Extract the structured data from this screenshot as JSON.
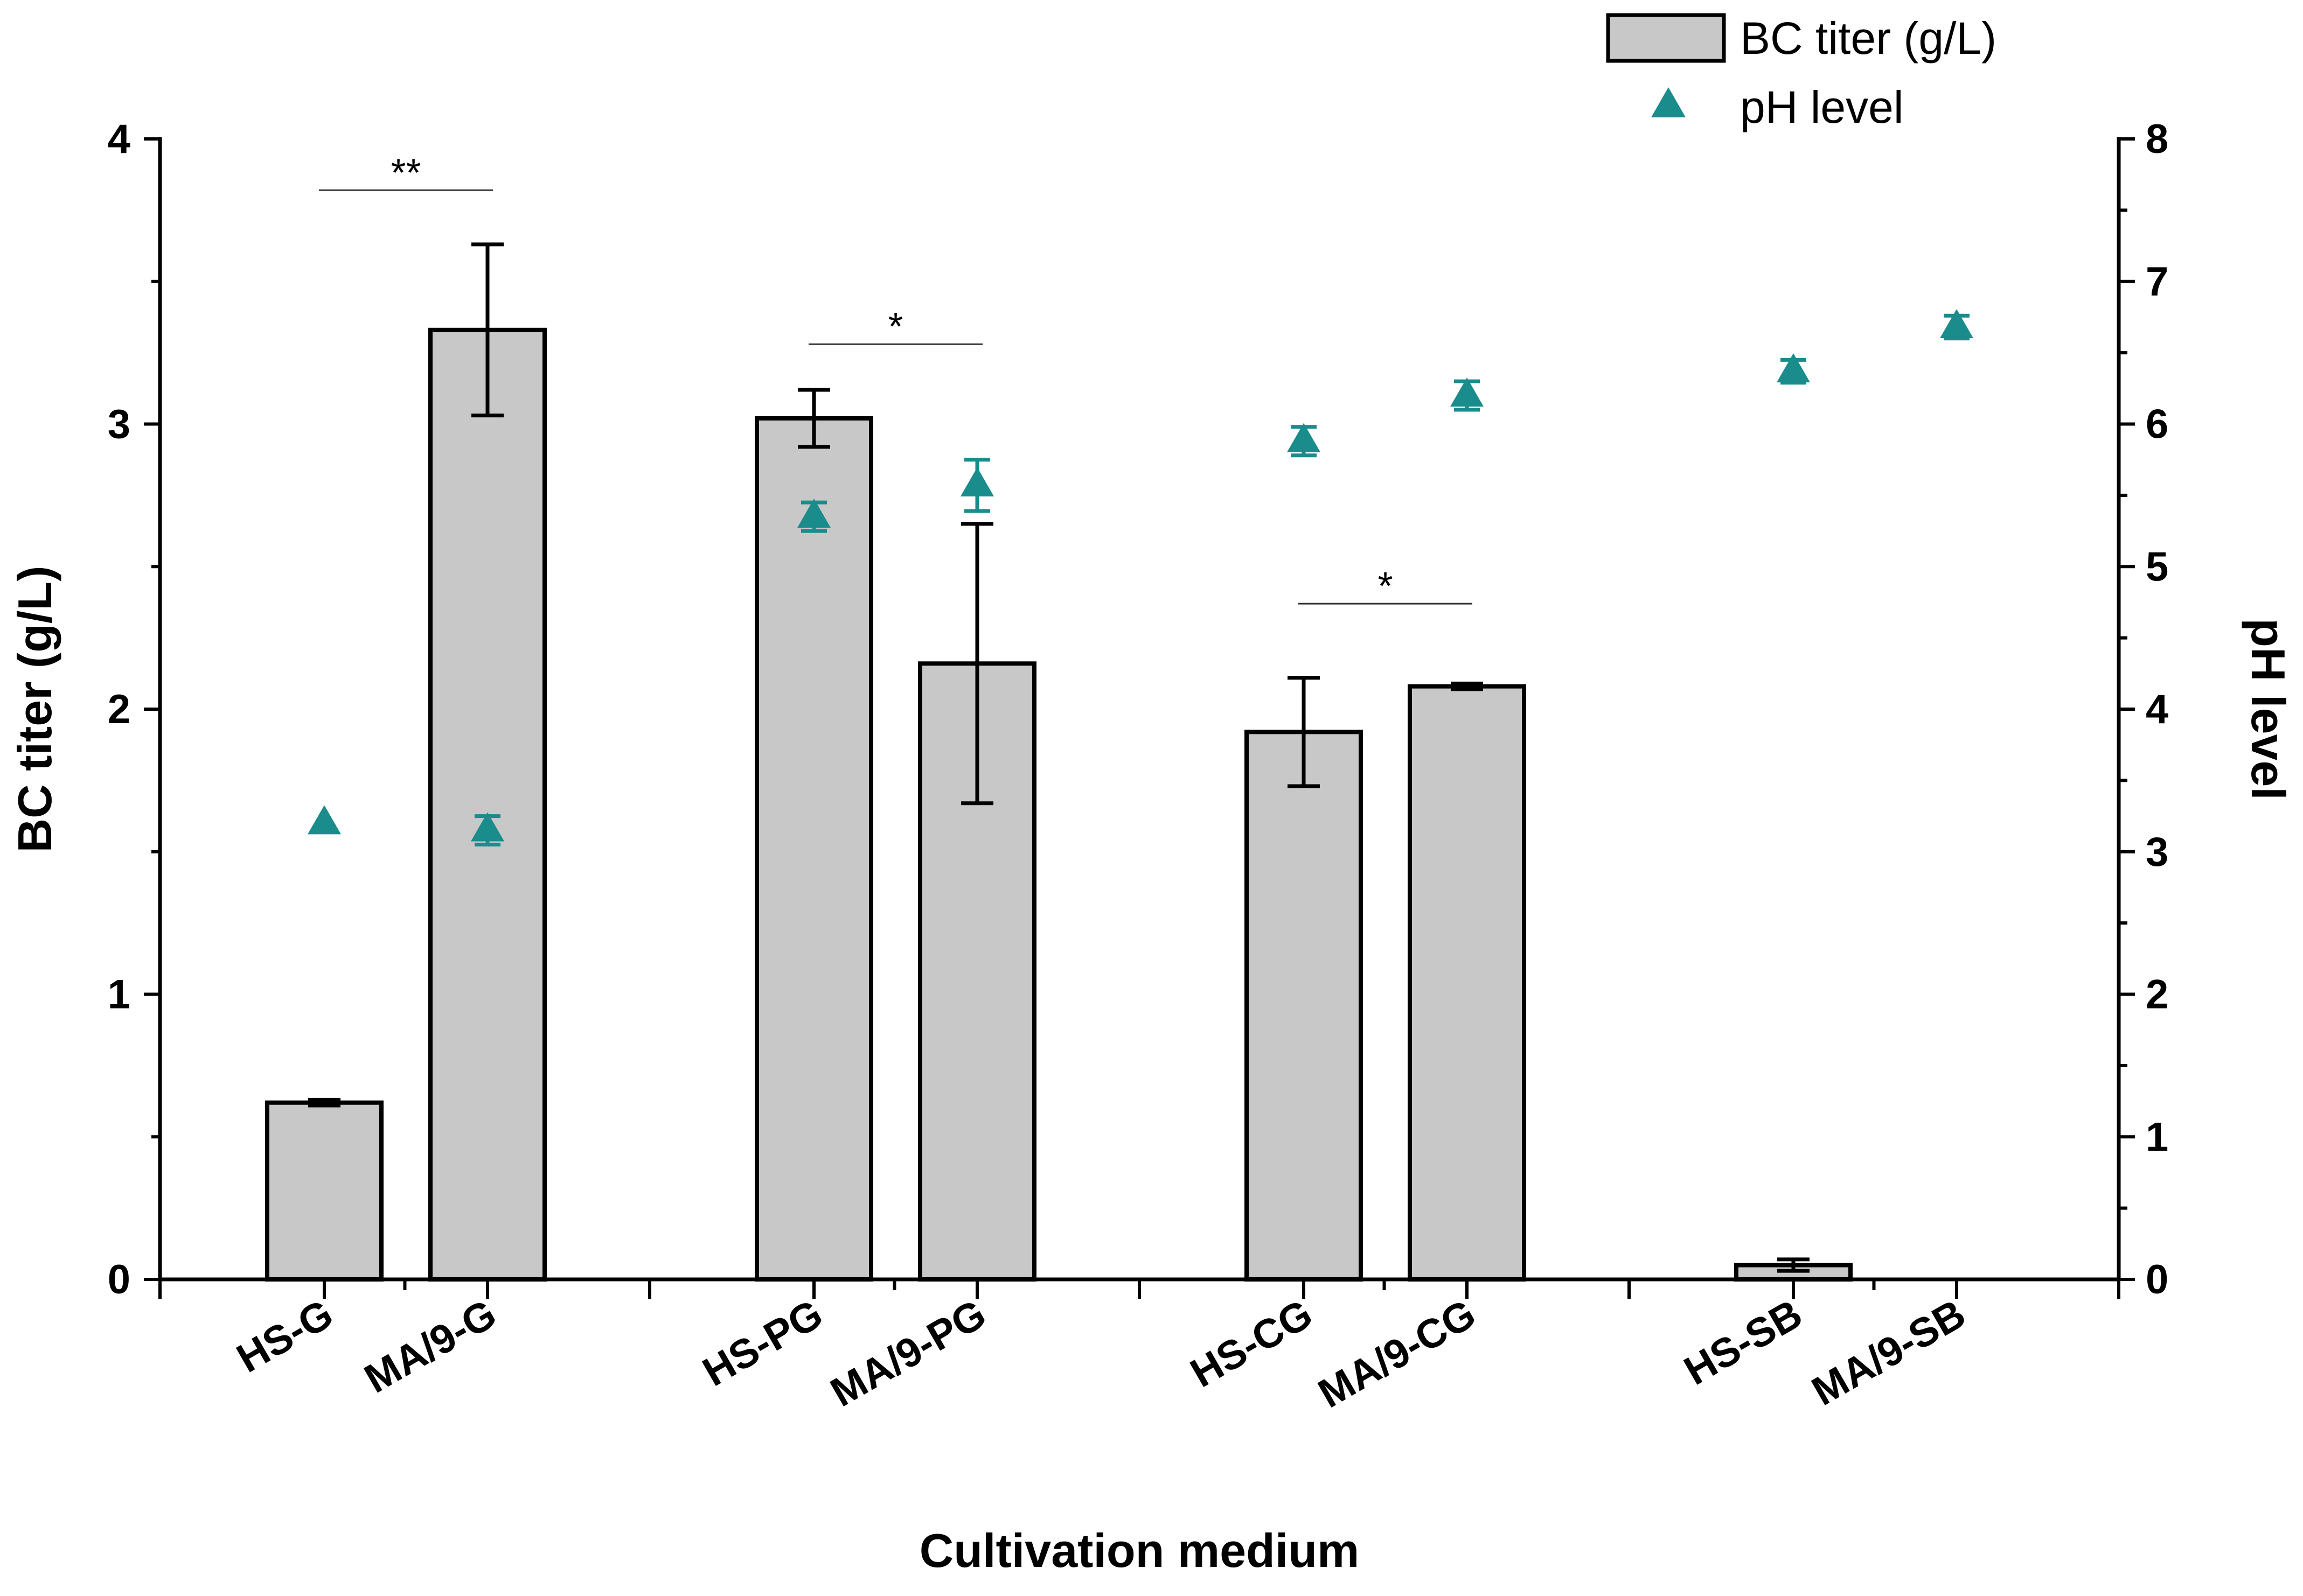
{
  "chart_data": {
    "type": "bar",
    "xlabel": "Cultivation medium",
    "ylabel": "BC titer (g/L)",
    "y2label": "pH level",
    "ylim": [
      0,
      4
    ],
    "y2lim": [
      0,
      8
    ],
    "yticks": [
      "0",
      "1",
      "2",
      "3",
      "4"
    ],
    "y2ticks": [
      "0",
      "1",
      "2",
      "3",
      "4",
      "5",
      "6",
      "7",
      "8"
    ],
    "categories": [
      "HS-G",
      "MA/9-G",
      "HS-PG",
      "MA/9-PG",
      "HS-CG",
      "MA/9-CG",
      "HS-SB",
      "MA/9-SB"
    ],
    "series": [
      {
        "name": "BC titer (g/L)",
        "kind": "bar",
        "axis": "left",
        "values": [
          0.62,
          3.33,
          3.02,
          2.16,
          1.92,
          2.08,
          0.05,
          0.0
        ],
        "errors": [
          0.01,
          0.3,
          0.1,
          0.49,
          0.19,
          0.01,
          0.02,
          0.0
        ]
      },
      {
        "name": "pH level",
        "kind": "scatter",
        "marker": "triangle",
        "axis": "right",
        "values": [
          3.2,
          3.15,
          5.35,
          5.57,
          5.88,
          6.2,
          6.37,
          6.68
        ],
        "errors": [
          0.0,
          0.1,
          0.1,
          0.18,
          0.1,
          0.1,
          0.08,
          0.08
        ]
      }
    ],
    "significance": [
      {
        "label": "**",
        "from": "HS-G",
        "to": "MA/9-G",
        "level": 3.82
      },
      {
        "label": "*",
        "from": "HS-PG",
        "to": "MA/9-PG",
        "level": 3.28
      },
      {
        "label": "*",
        "from": "HS-CG",
        "to": "MA/9-CG",
        "level": 2.37
      }
    ],
    "legend": {
      "position": "top-right",
      "entries": [
        {
          "label": "BC titer (g/L)",
          "symbol": "bar"
        },
        {
          "label": "pH level",
          "symbol": "triangle"
        }
      ]
    },
    "colors": {
      "bar_fill": "#c8c8c8",
      "ph_marker": "#1a8c8c",
      "axis": "#000000"
    }
  }
}
